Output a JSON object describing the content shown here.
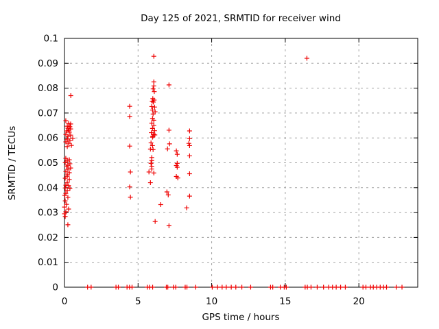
{
  "title": "Day 125 of 2021, SRMTID for receiver wind",
  "axes": {
    "xlabel": "GPS time / hours",
    "ylabel": "SRMTID / TECUs"
  },
  "colors": {
    "marker": "#ee0000",
    "grid": "#a0a0a0",
    "frame": "#000000"
  },
  "chart_data": {
    "type": "scatter",
    "title": "Day 125 of 2021, SRMTID for receiver wind",
    "xlabel": "GPS time / hours",
    "ylabel": "SRMTID / TECUs",
    "xlim": [
      0,
      24
    ],
    "ylim": [
      0,
      0.1
    ],
    "grid": true,
    "legend": "none",
    "marker": "plus",
    "x_tick_values": [
      0,
      5,
      10,
      15,
      20
    ],
    "x_tick_labels": [
      "0",
      "5",
      "10",
      "15",
      "20"
    ],
    "y_tick_values": [
      0,
      0.01,
      0.02,
      0.03,
      0.04,
      0.05,
      0.06,
      0.07,
      0.08,
      0.09,
      0.1
    ],
    "y_tick_labels": [
      "0",
      "0.01",
      "0.02",
      "0.03",
      "0.04",
      "0.05",
      "0.06",
      "0.07",
      "0.08",
      "0.09",
      "0.1"
    ],
    "series": [
      {
        "name": "SRMTID",
        "points": [
          [
            0.43,
            0.077
          ],
          [
            0.09,
            0.0669
          ],
          [
            0.28,
            0.0658
          ],
          [
            0.42,
            0.0656
          ],
          [
            0.19,
            0.0647
          ],
          [
            0.37,
            0.0645
          ],
          [
            0.23,
            0.0639
          ],
          [
            0.42,
            0.0636
          ],
          [
            0.28,
            0.0631
          ],
          [
            0.14,
            0.0628
          ],
          [
            0.33,
            0.0623
          ],
          [
            0.09,
            0.0614
          ],
          [
            0.42,
            0.0611
          ],
          [
            0.23,
            0.0606
          ],
          [
            0.56,
            0.0598
          ],
          [
            0.19,
            0.0595
          ],
          [
            0.37,
            0.0589
          ],
          [
            0.09,
            0.0584
          ],
          [
            0.28,
            0.0578
          ],
          [
            0.47,
            0.057
          ],
          [
            0.19,
            0.0565
          ],
          [
            0.09,
            0.0518
          ],
          [
            0.33,
            0.0512
          ],
          [
            0.19,
            0.0507
          ],
          [
            0.05,
            0.0501
          ],
          [
            0.37,
            0.0496
          ],
          [
            0.23,
            0.049
          ],
          [
            0.14,
            0.0485
          ],
          [
            0.42,
            0.0479
          ],
          [
            0.23,
            0.0474
          ],
          [
            0.09,
            0.0465
          ],
          [
            0.33,
            0.046
          ],
          [
            0.19,
            0.0452
          ],
          [
            0.19,
            0.0446
          ],
          [
            0.05,
            0.0438
          ],
          [
            0.33,
            0.0433
          ],
          [
            0.19,
            0.0421
          ],
          [
            0.09,
            0.041
          ],
          [
            0.28,
            0.0408
          ],
          [
            0.05,
            0.0399
          ],
          [
            0.37,
            0.0397
          ],
          [
            0.19,
            0.0388
          ],
          [
            0.09,
            0.0377
          ],
          [
            0.02,
            0.0369
          ],
          [
            0.23,
            0.0361
          ],
          [
            0.05,
            0.0347
          ],
          [
            0.14,
            0.0333
          ],
          [
            0.0,
            0.0322
          ],
          [
            0.28,
            0.0314
          ],
          [
            0.09,
            0.0303
          ],
          [
            0.0,
            0.0295
          ],
          [
            0.05,
            0.0284
          ],
          [
            0.23,
            0.0251
          ],
          [
            4.43,
            0.0727
          ],
          [
            4.43,
            0.0686
          ],
          [
            4.43,
            0.0567
          ],
          [
            4.48,
            0.0463
          ],
          [
            4.43,
            0.0403
          ],
          [
            4.48,
            0.0362
          ],
          [
            6.07,
            0.0928
          ],
          [
            6.07,
            0.0825
          ],
          [
            6.07,
            0.0809
          ],
          [
            6.02,
            0.0797
          ],
          [
            6.1,
            0.0786
          ],
          [
            6.0,
            0.0758
          ],
          [
            6.09,
            0.0752
          ],
          [
            5.96,
            0.0747
          ],
          [
            6.04,
            0.0744
          ],
          [
            5.93,
            0.0726
          ],
          [
            6.12,
            0.0724
          ],
          [
            5.98,
            0.0712
          ],
          [
            6.16,
            0.0705
          ],
          [
            6.02,
            0.0696
          ],
          [
            5.98,
            0.0678
          ],
          [
            6.07,
            0.0671
          ],
          [
            5.93,
            0.0659
          ],
          [
            6.07,
            0.065
          ],
          [
            5.98,
            0.0638
          ],
          [
            6.12,
            0.0629
          ],
          [
            5.9,
            0.0621
          ],
          [
            6.05,
            0.0615
          ],
          [
            6.14,
            0.0612
          ],
          [
            6.0,
            0.0607
          ],
          [
            5.98,
            0.0603
          ],
          [
            5.88,
            0.058
          ],
          [
            5.98,
            0.0569
          ],
          [
            5.84,
            0.0555
          ],
          [
            6.02,
            0.0553
          ],
          [
            5.93,
            0.0521
          ],
          [
            5.93,
            0.0509
          ],
          [
            5.88,
            0.0498
          ],
          [
            5.93,
            0.0486
          ],
          [
            5.93,
            0.0475
          ],
          [
            5.74,
            0.0463
          ],
          [
            6.07,
            0.0459
          ],
          [
            5.84,
            0.042
          ],
          [
            6.16,
            0.0264
          ],
          [
            6.54,
            0.0332
          ],
          [
            7.1,
            0.0813
          ],
          [
            7.1,
            0.0631
          ],
          [
            7.14,
            0.0576
          ],
          [
            7.0,
            0.0556
          ],
          [
            6.96,
            0.0383
          ],
          [
            7.05,
            0.0371
          ],
          [
            7.1,
            0.0247
          ],
          [
            7.6,
            0.0548
          ],
          [
            7.66,
            0.0534
          ],
          [
            7.66,
            0.0498
          ],
          [
            7.6,
            0.0489
          ],
          [
            7.66,
            0.0482
          ],
          [
            7.6,
            0.0445
          ],
          [
            7.7,
            0.0439
          ],
          [
            8.5,
            0.0628
          ],
          [
            8.5,
            0.0597
          ],
          [
            8.45,
            0.0578
          ],
          [
            8.5,
            0.0569
          ],
          [
            8.5,
            0.0528
          ],
          [
            8.5,
            0.0456
          ],
          [
            8.5,
            0.0366
          ],
          [
            8.3,
            0.0319
          ],
          [
            16.47,
            0.092
          ],
          [
            1.57,
            0
          ],
          [
            1.81,
            0
          ],
          [
            3.5,
            0
          ],
          [
            3.66,
            0
          ],
          [
            4.25,
            0
          ],
          [
            4.42,
            0
          ],
          [
            4.59,
            0
          ],
          [
            5.62,
            0
          ],
          [
            5.78,
            0
          ],
          [
            5.99,
            0
          ],
          [
            6.92,
            0
          ],
          [
            7.02,
            0
          ],
          [
            7.4,
            0
          ],
          [
            7.56,
            0
          ],
          [
            8.2,
            0
          ],
          [
            8.32,
            0
          ],
          [
            8.92,
            0
          ],
          [
            10.04,
            0
          ],
          [
            10.4,
            0
          ],
          [
            10.71,
            0
          ],
          [
            10.99,
            0
          ],
          [
            11.33,
            0
          ],
          [
            11.64,
            0
          ],
          [
            12.05,
            0
          ],
          [
            12.65,
            0
          ],
          [
            14.0,
            0
          ],
          [
            14.15,
            0
          ],
          [
            14.66,
            0
          ],
          [
            14.93,
            0
          ],
          [
            15.07,
            0
          ],
          [
            16.35,
            0
          ],
          [
            16.5,
            0
          ],
          [
            16.75,
            0
          ],
          [
            17.17,
            0
          ],
          [
            17.6,
            0
          ],
          [
            17.95,
            0
          ],
          [
            18.21,
            0
          ],
          [
            18.46,
            0
          ],
          [
            18.76,
            0
          ],
          [
            19.08,
            0
          ],
          [
            20.28,
            0
          ],
          [
            20.48,
            0
          ],
          [
            20.79,
            0
          ],
          [
            20.98,
            0
          ],
          [
            21.21,
            0
          ],
          [
            21.45,
            0
          ],
          [
            21.68,
            0
          ],
          [
            21.88,
            0
          ],
          [
            22.54,
            0
          ],
          [
            22.93,
            0
          ]
        ]
      }
    ]
  }
}
